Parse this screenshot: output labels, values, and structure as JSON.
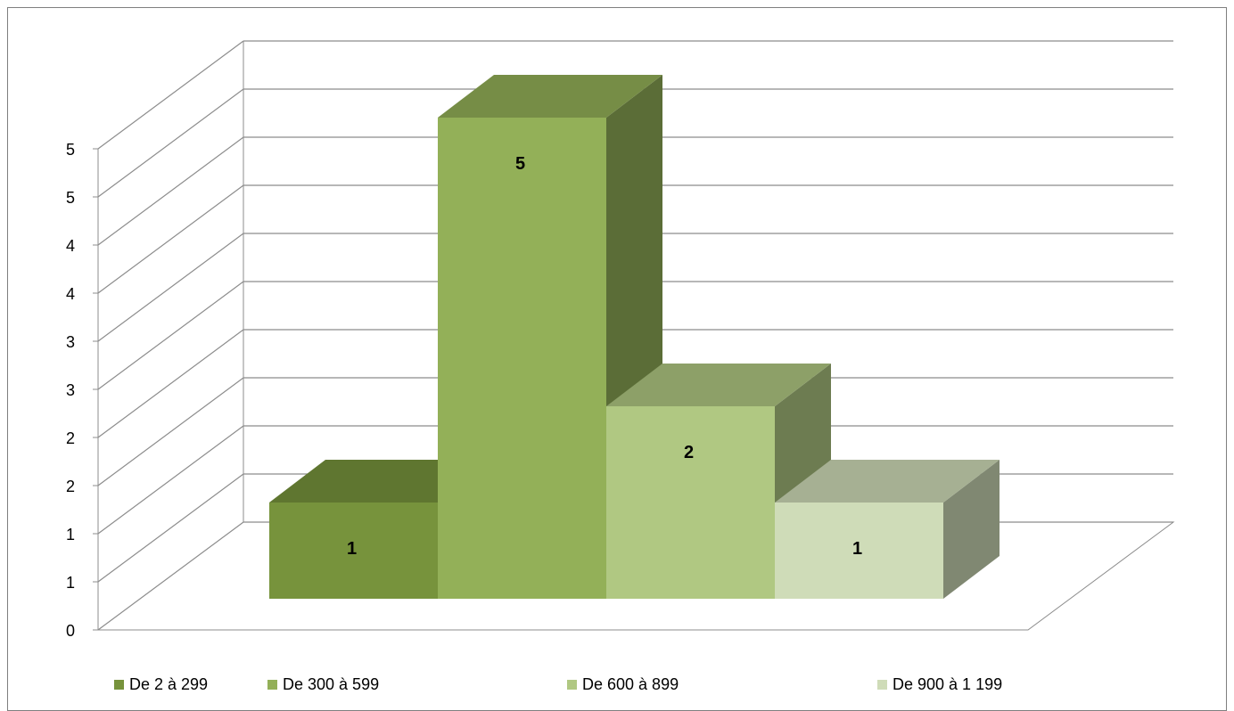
{
  "chart_data": {
    "type": "bar",
    "categories": [
      ""
    ],
    "series": [
      {
        "name": "De 2 à 299",
        "values": [
          1
        ],
        "color": "#77933c"
      },
      {
        "name": "De 300 à 599",
        "values": [
          5
        ],
        "color": "#93b058"
      },
      {
        "name": "De 600 à 899",
        "values": [
          2
        ],
        "color": "#b0c882"
      },
      {
        "name": "De 900 à 1 199",
        "values": [
          1
        ],
        "color": "#cfdcb8"
      }
    ],
    "data_labels": [
      "1",
      "5",
      "2",
      "1"
    ],
    "y_ticks": [
      "0",
      "1",
      "1",
      "2",
      "2",
      "3",
      "3",
      "4",
      "4",
      "5",
      "5"
    ],
    "ylim": [
      0,
      5
    ],
    "title": "",
    "xlabel": "",
    "ylabel": "",
    "grid": true,
    "legend_position": "bottom",
    "style": "3d-column"
  }
}
